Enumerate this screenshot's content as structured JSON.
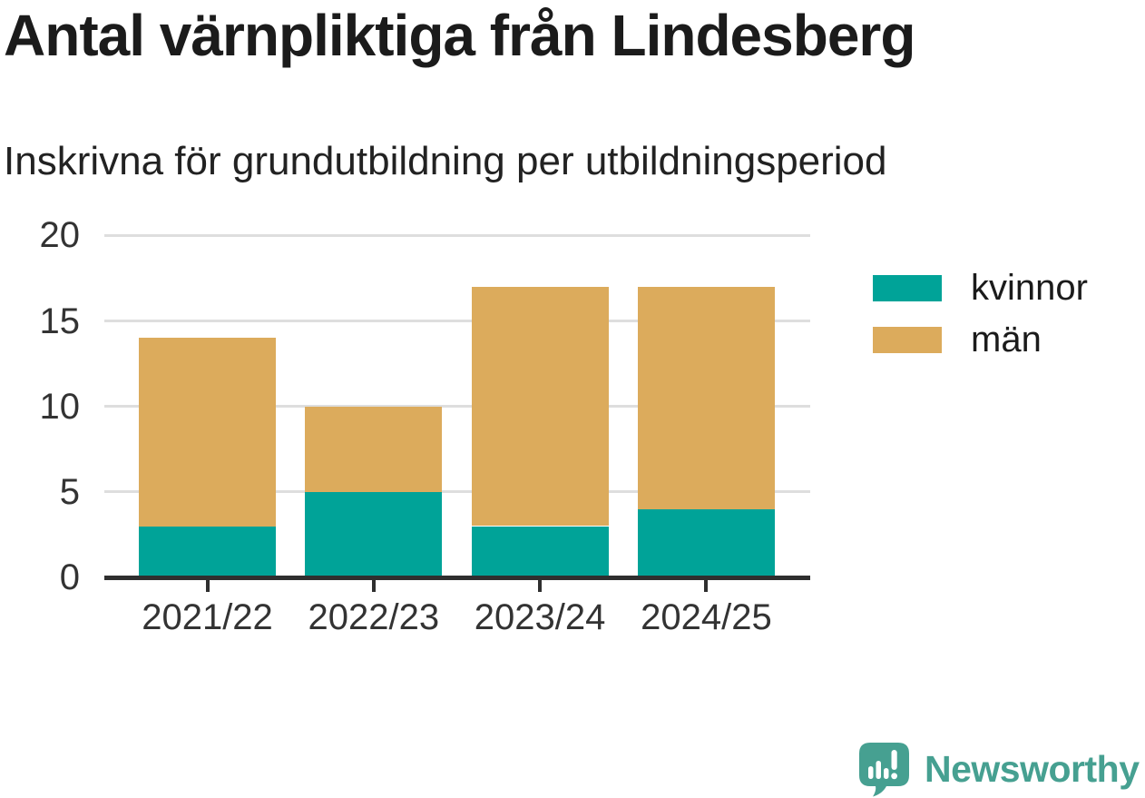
{
  "header": {
    "title": "Antal värnpliktiga från Lindesberg",
    "subtitle": "Inskrivna för grundutbildning per utbildningsperiod"
  },
  "chart_data": {
    "type": "bar",
    "stacked": true,
    "categories": [
      "2021/22",
      "2022/23",
      "2023/24",
      "2024/25"
    ],
    "series": [
      {
        "name": "kvinnor",
        "color": "#00a398",
        "values": [
          3,
          5,
          3,
          4
        ]
      },
      {
        "name": "män",
        "color": "#dcab5c",
        "values": [
          11,
          5,
          14,
          13
        ]
      }
    ],
    "stack_totals": [
      14,
      10,
      17,
      17
    ],
    "title": "Antal värnpliktiga från Lindesberg",
    "subtitle": "Inskrivna för grundutbildning per utbildningsperiod",
    "xlabel": "",
    "ylabel": "",
    "ylim": [
      0,
      20
    ],
    "yticks": [
      0,
      5,
      10,
      15,
      20
    ],
    "grid": "horizontal",
    "legend_position": "right",
    "axis_color": "#2f2f2f",
    "grid_color": "#dedede",
    "tick_label_color": "#333333"
  },
  "branding": {
    "logo_text": "Newsworthy",
    "logo_color": "#46a091"
  }
}
